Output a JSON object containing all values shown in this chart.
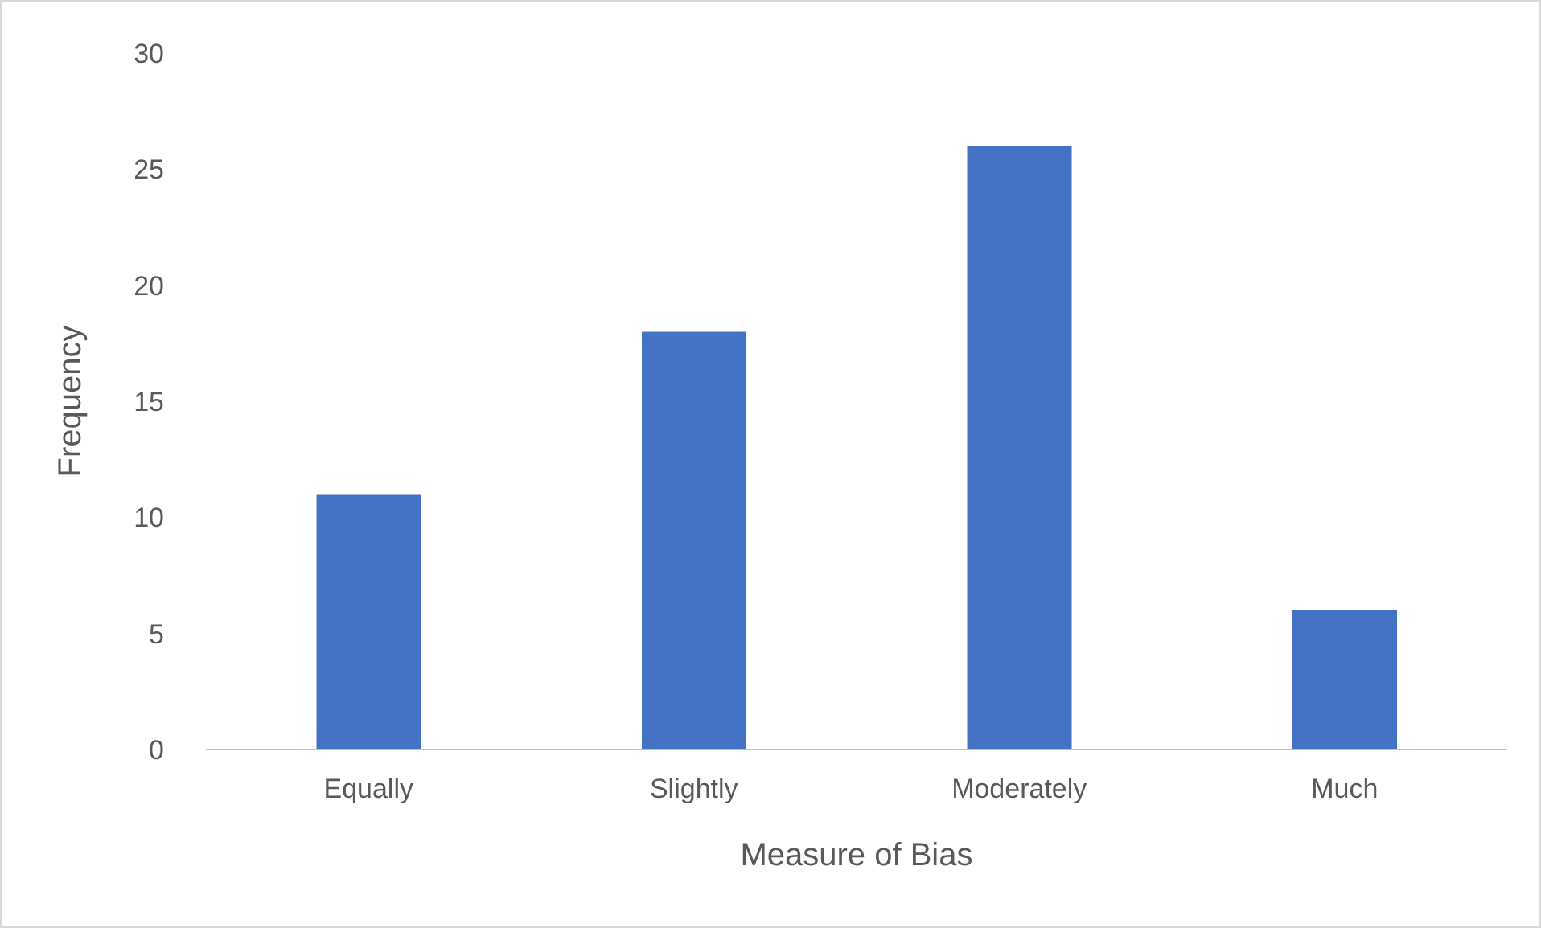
{
  "chart_data": {
    "type": "bar",
    "xlabel": "Measure of Bias",
    "ylabel": "Frequency",
    "categories": [
      "Equally",
      "Slightly",
      "Moderately",
      "Much"
    ],
    "values": [
      11,
      18,
      26,
      6
    ],
    "color": "#4472c4",
    "ylim": [
      0,
      30
    ],
    "yticks": [
      0,
      5,
      10,
      15,
      20,
      25,
      30
    ],
    "grid": false
  }
}
